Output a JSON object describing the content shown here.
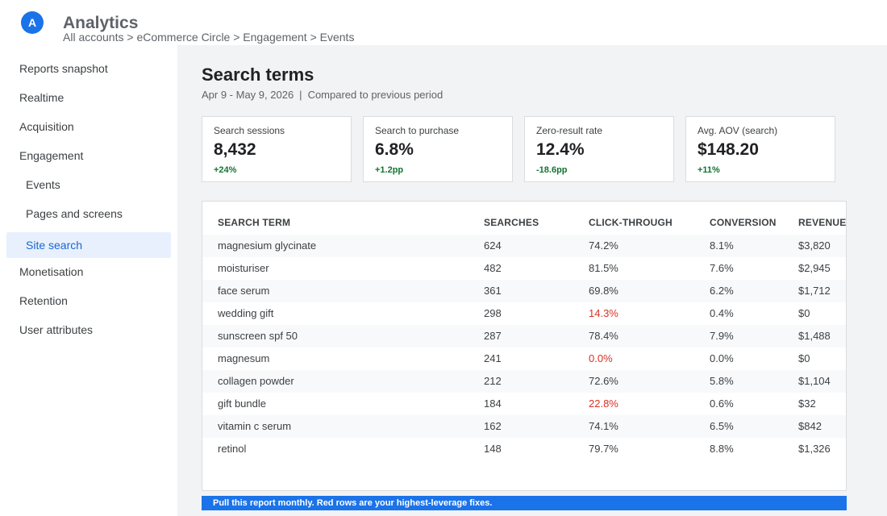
{
  "app": {
    "logo_letter": "A",
    "title": "Analytics",
    "breadcrumb": "All accounts > eCommerce Circle > Engagement > Events"
  },
  "sidebar": {
    "items": [
      {
        "label": "Reports snapshot"
      },
      {
        "label": "Realtime"
      },
      {
        "label": "Acquisition"
      },
      {
        "label": "Engagement"
      },
      {
        "label": "Events"
      },
      {
        "label": "Pages and screens"
      },
      {
        "label": "Site search",
        "active": true
      },
      {
        "label": "Monetisation"
      },
      {
        "label": "Retention"
      },
      {
        "label": "User attributes"
      }
    ]
  },
  "page": {
    "title": "Search terms",
    "date_range": "Apr 9 - May 9, 2026",
    "separator": "|",
    "comparison": "Compared to previous period"
  },
  "kpis": [
    {
      "label": "Search sessions",
      "value": "8,432",
      "delta": "+24%"
    },
    {
      "label": "Search to purchase",
      "value": "6.8%",
      "delta": "+1.2pp"
    },
    {
      "label": "Zero-result rate",
      "value": "12.4%",
      "delta": "-18.6pp"
    },
    {
      "label": "Avg. AOV (search)",
      "value": "$148.20",
      "delta": "+11%"
    }
  ],
  "table": {
    "headers": {
      "term": "SEARCH TERM",
      "searches": "SEARCHES",
      "ctr": "CLICK-THROUGH",
      "conversion": "CONVERSION",
      "revenue": "REVENUE"
    },
    "rows": [
      {
        "term": "magnesium glycinate",
        "searches": "624",
        "ctr": "74.2%",
        "conversion": "8.1%",
        "revenue": "$3,820"
      },
      {
        "term": "moisturiser",
        "searches": "482",
        "ctr": "81.5%",
        "conversion": "7.6%",
        "revenue": "$2,945"
      },
      {
        "term": "face serum",
        "searches": "361",
        "ctr": "69.8%",
        "conversion": "6.2%",
        "revenue": "$1,712"
      },
      {
        "term": "wedding gift",
        "searches": "298",
        "ctr": "14.3%",
        "conversion": "0.4%",
        "revenue": "$0"
      },
      {
        "term": "sunscreen spf 50",
        "searches": "287",
        "ctr": "78.4%",
        "conversion": "7.9%",
        "revenue": "$1,488"
      },
      {
        "term": "magnesum",
        "searches": "241",
        "ctr": "0.0%",
        "conversion": "0.0%",
        "revenue": "$0"
      },
      {
        "term": "collagen powder",
        "searches": "212",
        "ctr": "72.6%",
        "conversion": "5.8%",
        "revenue": "$1,104"
      },
      {
        "term": "gift bundle",
        "searches": "184",
        "ctr": "22.8%",
        "conversion": "0.6%",
        "revenue": "$32"
      },
      {
        "term": "vitamin c serum",
        "searches": "162",
        "ctr": "74.1%",
        "conversion": "6.5%",
        "revenue": "$842"
      },
      {
        "term": "retinol",
        "searches": "148",
        "ctr": "79.7%",
        "conversion": "8.8%",
        "revenue": "$1,326"
      }
    ]
  },
  "banner": {
    "text": "Pull this report monthly. Red rows are your highest-leverage fixes."
  },
  "colors": {
    "accent": "#1a73e8",
    "positive": "#137333",
    "negative": "#d93025",
    "background": "#f1f3f4"
  }
}
